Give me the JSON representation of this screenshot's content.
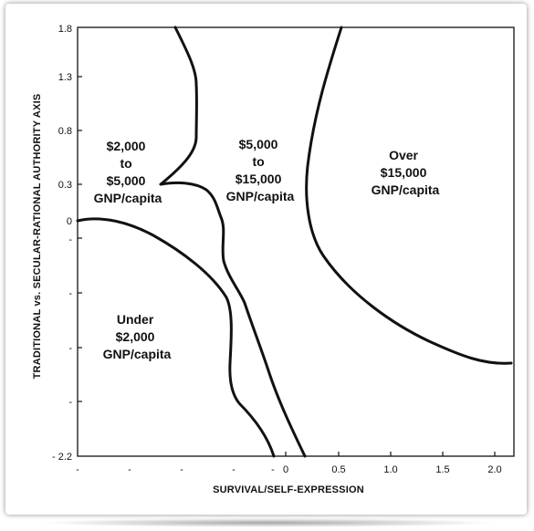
{
  "chart_data": {
    "type": "line",
    "xlabel": "SURVIVAL/SELF-EXPRESSION",
    "ylabel": "TRADITIONAL vs. SECULAR-RATIONAL AUTHORITY AXIS",
    "x_tick_labels": [
      "-",
      "-",
      "-",
      "-",
      "-",
      "0",
      "0.5",
      "1.0",
      "1.5",
      "2.0"
    ],
    "y_tick_labels": [
      "1.8",
      "1.3",
      "0.8",
      "0.3",
      "0",
      "-",
      "-",
      "-",
      "-",
      "- 2.2"
    ],
    "regions": [
      {
        "lines": [
          "$2,000",
          "to",
          "$5,000",
          "GNP/capita"
        ]
      },
      {
        "lines": [
          "$5,000",
          "to",
          "$15,000",
          "GNP/capita"
        ]
      },
      {
        "lines": [
          "Over",
          "$15,000",
          "GNP/capita"
        ]
      },
      {
        "lines": [
          "Under",
          "$2,000",
          "GNP/capita"
        ]
      }
    ]
  }
}
